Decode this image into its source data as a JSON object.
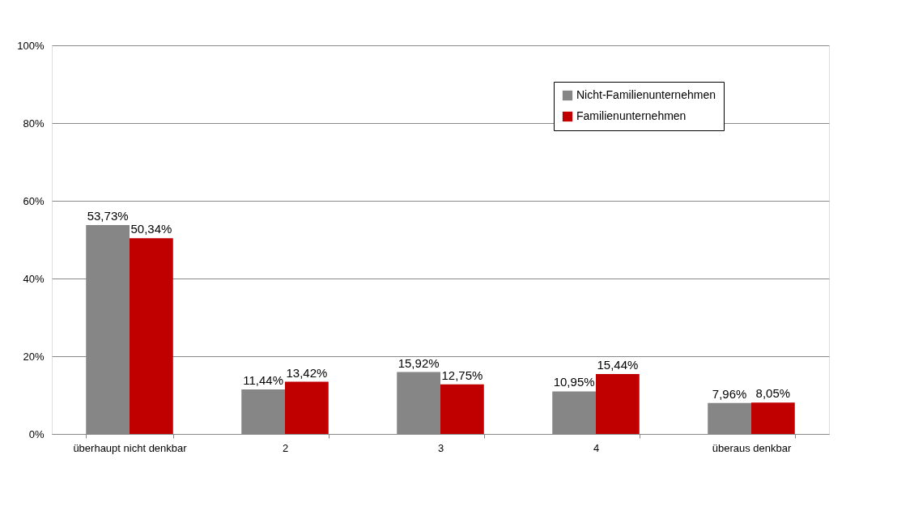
{
  "chart_data": {
    "type": "bar",
    "categories": [
      "überhaupt nicht denkbar",
      "2",
      "3",
      "4",
      "überaus denkbar"
    ],
    "series": [
      {
        "name": "Nicht-Familienunternehmen",
        "color": "#868686",
        "values": [
          53.73,
          11.44,
          15.92,
          10.95,
          7.96
        ],
        "value_labels": [
          "53,73%",
          "11,44%",
          "15,92%",
          "10,95%",
          "7,96%"
        ]
      },
      {
        "name": "Familienunternehmen",
        "color": "#c00000",
        "values": [
          50.34,
          13.42,
          12.75,
          15.44,
          8.05
        ],
        "value_labels": [
          "50,34%",
          "13,42%",
          "12,75%",
          "15,44%",
          "8,05%"
        ]
      }
    ],
    "ylim": [
      0,
      100
    ],
    "yticks": [
      {
        "value": 0,
        "label": "0%"
      },
      {
        "value": 20,
        "label": "20%"
      },
      {
        "value": 40,
        "label": "40%"
      },
      {
        "value": 60,
        "label": "60%"
      },
      {
        "value": 80,
        "label": "80%"
      },
      {
        "value": 100,
        "label": "100%"
      }
    ],
    "grid": "y",
    "legend": "top right"
  }
}
